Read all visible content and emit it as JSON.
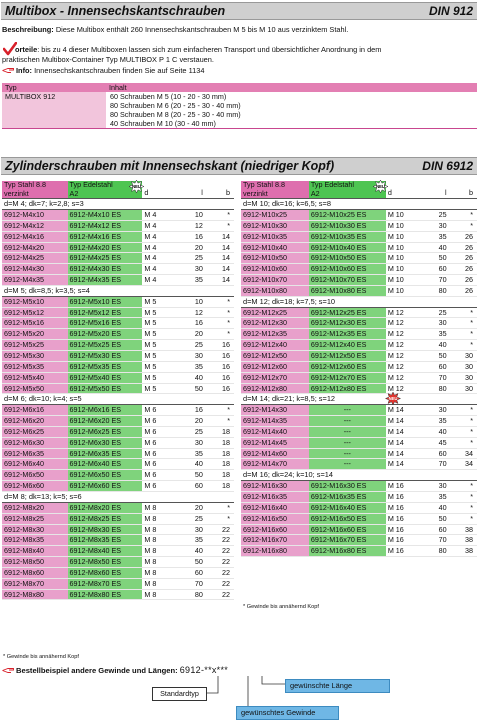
{
  "header1": {
    "title": "Multibox - Innensechskantschrauben",
    "code": "DIN 912"
  },
  "description": {
    "label": "Beschreibung:",
    "text": "Diese Multibox enthält 260 Innensechskantschrauben M 5 bis M 10 aus verzinktem Stahl."
  },
  "vorteile": {
    "label": "orteile",
    "line1": ": bis zu 4 dieser Multiboxen lassen sich zum einfacheren Transport und übersichtlicher Anordnung in dem",
    "line2": "praktischen Multibox-Container Typ MULTIBOX P 1 C verstauen."
  },
  "info": {
    "label": "Info:",
    "text": "Innensechskantschrauben finden Sie auf Seite 1134"
  },
  "multibox": {
    "head_typ": "Typ",
    "head_inhalt": "Inhalt",
    "typ": "MULTIBOX 912",
    "contents": [
      "60 Schrauben M 5 (10 - 20 - 30 mm)",
      "80 Schrauben M 6 (20 - 25 - 30 - 40 mm)",
      "80 Schrauben M 8 (20 - 25 - 30 - 40 mm)",
      "40 Schrauben M 10 (30 - 40 mm)"
    ]
  },
  "header2": {
    "title": "Zylinderschrauben mit Innensechskant (niedriger Kopf)",
    "code": "DIN 6912"
  },
  "table_header": {
    "typ_stahl_1": "Typ Stahl 8.8",
    "typ_stahl_2": "verzinkt",
    "typ_edel_1": "Typ Edelstahl",
    "typ_edel_2": "A2",
    "d": "d",
    "l": "l",
    "b": "b",
    "badge": "NEU"
  },
  "left_table": [
    {
      "section": "d=M 4; dk=7; k=2,8; s=3",
      "rows": [
        [
          "6912-M4x10",
          "6912-M4x10 ES",
          "M 4",
          "10",
          "*"
        ],
        [
          "6912-M4x12",
          "6912-M4x12 ES",
          "M 4",
          "12",
          "*"
        ],
        [
          "6912-M4x16",
          "6912-M4x16 ES",
          "M 4",
          "16",
          "14"
        ],
        [
          "6912-M4x20",
          "6912-M4x20 ES",
          "M 4",
          "20",
          "14"
        ],
        [
          "6912-M4x25",
          "6912-M4x25 ES",
          "M 4",
          "25",
          "14"
        ],
        [
          "6912-M4x30",
          "6912-M4x30 ES",
          "M 4",
          "30",
          "14"
        ],
        [
          "6912-M4x35",
          "6912-M4x35 ES",
          "M 4",
          "35",
          "14"
        ]
      ]
    },
    {
      "section": "d=M 5; dk=8,5; k=3,5; s=4",
      "rows": [
        [
          "6912-M5x10",
          "6912-M5x10 ES",
          "M 5",
          "10",
          "*"
        ],
        [
          "6912-M5x12",
          "6912-M5x12 ES",
          "M 5",
          "12",
          "*"
        ],
        [
          "6912-M5x16",
          "6912-M5x16 ES",
          "M 5",
          "16",
          "*"
        ],
        [
          "6912-M5x20",
          "6912-M5x20 ES",
          "M 5",
          "20",
          "*"
        ],
        [
          "6912-M5x25",
          "6912-M5x25 ES",
          "M 5",
          "25",
          "16"
        ],
        [
          "6912-M5x30",
          "6912-M5x30 ES",
          "M 5",
          "30",
          "16"
        ],
        [
          "6912-M5x35",
          "6912-M5x35 ES",
          "M 5",
          "35",
          "16"
        ],
        [
          "6912-M5x40",
          "6912-M5x40 ES",
          "M 5",
          "40",
          "16"
        ],
        [
          "6912-M5x50",
          "6912-M5x50 ES",
          "M 5",
          "50",
          "16"
        ]
      ]
    },
    {
      "section": "d=M 6; dk=10; k=4; s=5",
      "rows": [
        [
          "6912-M6x16",
          "6912-M6x16 ES",
          "M 6",
          "16",
          "*"
        ],
        [
          "6912-M6x20",
          "6912-M6x20 ES",
          "M 6",
          "20",
          "*"
        ],
        [
          "6912-M6x25",
          "6912-M6x25 ES",
          "M 6",
          "25",
          "18"
        ],
        [
          "6912-M6x30",
          "6912-M6x30 ES",
          "M 6",
          "30",
          "18"
        ],
        [
          "6912-M6x35",
          "6912-M6x35 ES",
          "M 6",
          "35",
          "18"
        ],
        [
          "6912-M6x40",
          "6912-M6x40 ES",
          "M 6",
          "40",
          "18"
        ],
        [
          "6912-M6x50",
          "6912-M6x50 ES",
          "M 6",
          "50",
          "18"
        ],
        [
          "6912-M6x60",
          "6912-M6x60 ES",
          "M 6",
          "60",
          "18"
        ]
      ]
    },
    {
      "section": "d=M 8; dk=13; k=5; s=6",
      "rows": [
        [
          "6912-M8x20",
          "6912-M8x20 ES",
          "M 8",
          "20",
          "*"
        ],
        [
          "6912-M8x25",
          "6912-M8x25 ES",
          "M 8",
          "25",
          "*"
        ],
        [
          "6912-M8x30",
          "6912-M8x30 ES",
          "M 8",
          "30",
          "22"
        ],
        [
          "6912-M8x35",
          "6912-M8x35 ES",
          "M 8",
          "35",
          "22"
        ],
        [
          "6912-M8x40",
          "6912-M8x40 ES",
          "M 8",
          "40",
          "22"
        ],
        [
          "6912-M8x50",
          "6912-M8x50 ES",
          "M 8",
          "50",
          "22"
        ],
        [
          "6912-M8x60",
          "6912-M8x60 ES",
          "M 8",
          "60",
          "22"
        ],
        [
          "6912-M8x70",
          "6912-M8x70 ES",
          "M 8",
          "70",
          "22"
        ],
        [
          "6912-M8x80",
          "6912-M8x80 ES",
          "M 8",
          "80",
          "22"
        ]
      ]
    }
  ],
  "right_table": [
    {
      "section": "d=M 10; dk=16; k=6,5; s=8",
      "rows": [
        [
          "6912-M10x25",
          "6912-M10x25 ES",
          "M 10",
          "25",
          "*"
        ],
        [
          "6912-M10x30",
          "6912-M10x30 ES",
          "M 10",
          "30",
          "*"
        ],
        [
          "6912-M10x35",
          "6912-M10x35 ES",
          "M 10",
          "35",
          "26"
        ],
        [
          "6912-M10x40",
          "6912-M10x40 ES",
          "M 10",
          "40",
          "26"
        ],
        [
          "6912-M10x50",
          "6912-M10x50 ES",
          "M 10",
          "50",
          "26"
        ],
        [
          "6912-M10x60",
          "6912-M10x60 ES",
          "M 10",
          "60",
          "26"
        ],
        [
          "6912-M10x70",
          "6912-M10x70 ES",
          "M 10",
          "70",
          "26"
        ],
        [
          "6912-M10x80",
          "6912-M10x80 ES",
          "M 10",
          "80",
          "26"
        ]
      ]
    },
    {
      "section": "d=M 12; dk=18; k=7,5; s=10",
      "rows": [
        [
          "6912-M12x25",
          "6912-M12x25 ES",
          "M 12",
          "25",
          "*"
        ],
        [
          "6912-M12x30",
          "6912-M12x30 ES",
          "M 12",
          "30",
          "*"
        ],
        [
          "6912-M12x35",
          "6912-M12x35 ES",
          "M 12",
          "35",
          "*"
        ],
        [
          "6912-M12x40",
          "6912-M12x40 ES",
          "M 12",
          "40",
          "*"
        ],
        [
          "6912-M12x50",
          "6912-M12x50 ES",
          "M 12",
          "50",
          "30"
        ],
        [
          "6912-M12x60",
          "6912-M12x60 ES",
          "M 12",
          "60",
          "30"
        ],
        [
          "6912-M12x70",
          "6912-M12x70 ES",
          "M 12",
          "70",
          "30"
        ],
        [
          "6912-M12x80",
          "6912-M12x80 ES",
          "M 12",
          "80",
          "30"
        ]
      ]
    },
    {
      "section": "d=M 14; dk=21; k=8,5; s=12",
      "badge": "NEU",
      "rows": [
        [
          "6912-M14x30",
          "---",
          "M 14",
          "30",
          "*"
        ],
        [
          "6912-M14x35",
          "---",
          "M 14",
          "35",
          "*"
        ],
        [
          "6912-M14x40",
          "---",
          "M 14",
          "40",
          "*"
        ],
        [
          "6912-M14x45",
          "---",
          "M 14",
          "45",
          "*"
        ],
        [
          "6912-M14x60",
          "---",
          "M 14",
          "60",
          "34"
        ],
        [
          "6912-M14x70",
          "---",
          "M 14",
          "70",
          "34"
        ]
      ]
    },
    {
      "section": "d=M 16; dk=24; k=10; s=14",
      "rows": [
        [
          "6912-M16x30",
          "6912-M16x30 ES",
          "M 16",
          "30",
          "*"
        ],
        [
          "6912-M16x35",
          "6912-M16x35 ES",
          "M 16",
          "35",
          "*"
        ],
        [
          "6912-M16x40",
          "6912-M16x40 ES",
          "M 16",
          "40",
          "*"
        ],
        [
          "6912-M16x50",
          "6912-M16x50 ES",
          "M 16",
          "50",
          "*"
        ],
        [
          "6912-M16x60",
          "6912-M16x60 ES",
          "M 16",
          "60",
          "38"
        ],
        [
          "6912-M16x70",
          "6912-M16x70 ES",
          "M 16",
          "70",
          "38"
        ],
        [
          "6912-M16x80",
          "6912-M16x80 ES",
          "M 16",
          "80",
          "38"
        ]
      ]
    }
  ],
  "note_right": "* Gewinde bis annähernd Kopf",
  "note_left": "* Gewinde bis annähernd Kopf",
  "bestellbeispiel": {
    "label": "Bestellbeispiel andere Gewinde und Längen:",
    "code": "6912-**x***",
    "standardtyp": "Standardtyp",
    "laenge": "gewünschte Länge",
    "gewinde": "gewünschtes Gewinde"
  },
  "colors": {
    "pink": "#e8a0cb",
    "pink_dark": "#de6fae",
    "green": "#7fd37c",
    "green_dark": "#4ec552",
    "blue": "#6fb7e5",
    "check": "#d8202a"
  },
  "icons": {
    "check": "red-check-icon",
    "hand": "pointing-hand-icon",
    "badge": "starburst-badge-icon"
  }
}
